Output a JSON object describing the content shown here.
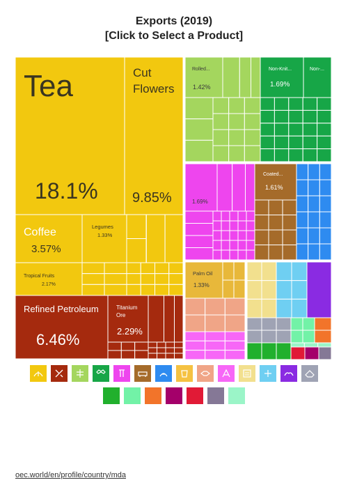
{
  "page": {
    "title_line1": "Exports (2019)",
    "title_line2": "[Click to Select a Product]",
    "footer_link": "oec.world/en/profile/country/mda"
  },
  "chart_data": {
    "type": "treemap",
    "title": "Exports (2019)",
    "tiles": [
      {
        "label": "Tea",
        "value": 18.1,
        "value_label": "18.1%",
        "color": "#F2C80F"
      },
      {
        "label": "Cut Flowers",
        "value": 9.85,
        "value_label": "9.85%",
        "color": "#F2C80F"
      },
      {
        "label": "Coffee",
        "value": 3.57,
        "value_label": "3.57%",
        "color": "#F2C80F"
      },
      {
        "label": "Legumes",
        "value": 1.33,
        "value_label": "1.33%",
        "color": "#F2C80F"
      },
      {
        "label": "Tropical Fruits",
        "value": 2.17,
        "value_label": "2.17%",
        "color": "#F2C80F"
      },
      {
        "label": "Refined Petroleum",
        "value": 6.46,
        "value_label": "6.46%",
        "color": "#A52A0E"
      },
      {
        "label": "Titanium Ore",
        "value": 2.29,
        "value_label": "2.29%",
        "color": "#A52A0E"
      },
      {
        "label": "Rolled...",
        "value": 1.42,
        "value_label": "1.42%",
        "color": "#A4D65E"
      },
      {
        "label": "Non-Knit...",
        "value": 1.69,
        "value_label": "1.69%",
        "color": "#17A647"
      },
      {
        "label": "Non-...",
        "value": null,
        "value_label": "",
        "color": "#17A647"
      },
      {
        "label": "",
        "value": 1.69,
        "value_label": "1.69%",
        "color": "#EE45EE"
      },
      {
        "label": "Coated...",
        "value": 1.61,
        "value_label": "1.61%",
        "color": "#A56B2A"
      },
      {
        "label": "Palm Oil",
        "value": 1.33,
        "value_label": "1.33%",
        "color": "#E8B83A"
      }
    ]
  },
  "legend": {
    "row1": [
      {
        "icon": "plant-icon",
        "color": "#F2C80F"
      },
      {
        "icon": "minerals-icon",
        "color": "#A52A0E"
      },
      {
        "icon": "metal-icon",
        "color": "#A4D65E"
      },
      {
        "icon": "textile-icon",
        "color": "#17A647"
      },
      {
        "icon": "machine-icon",
        "color": "#EE45EE"
      },
      {
        "icon": "vehicle-icon",
        "color": "#A56B2A"
      },
      {
        "icon": "chemical-icon",
        "color": "#2E8BF0"
      },
      {
        "icon": "food-icon",
        "color": "#F5C242"
      },
      {
        "icon": "animal-hide-icon",
        "color": "#F0A587"
      },
      {
        "icon": "plastic-icon",
        "color": "#F767F7"
      },
      {
        "icon": "paper-icon",
        "color": "#F2E08E"
      },
      {
        "icon": "instrument-icon",
        "color": "#6FCFF2"
      },
      {
        "icon": "footwear-icon",
        "color": "#8A2BE2"
      },
      {
        "icon": "stone-icon",
        "color": "#9FA3B4"
      }
    ],
    "row2": [
      {
        "icon": "swatch",
        "color": "#21B02D"
      },
      {
        "icon": "swatch",
        "color": "#72F2A7"
      },
      {
        "icon": "swatch",
        "color": "#F2742A"
      },
      {
        "icon": "swatch",
        "color": "#A4006A"
      },
      {
        "icon": "swatch",
        "color": "#E11A36"
      },
      {
        "icon": "swatch",
        "color": "#857896"
      },
      {
        "icon": "swatch",
        "color": "#9BF5C8"
      }
    ]
  }
}
